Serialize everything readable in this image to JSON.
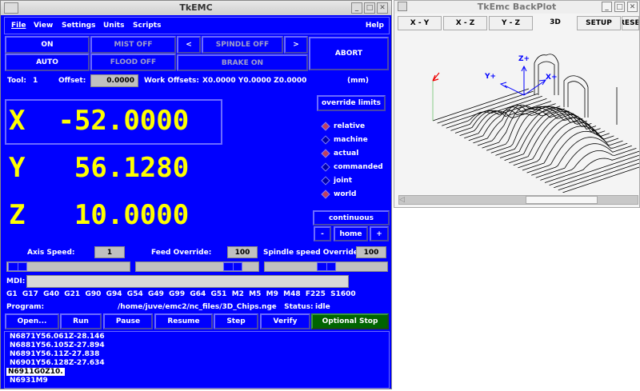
{
  "main": {
    "title": "TkEMC",
    "menu": [
      "File",
      "View",
      "Settings",
      "Units",
      "Scripts",
      "Help"
    ],
    "buttons": {
      "on": "ON",
      "mist": "MIST OFF",
      "spindle_dec": "<",
      "spindle": "SPINDLE OFF",
      "spindle_inc": ">",
      "abort": "ABORT",
      "auto": "AUTO",
      "flood": "FLOOD OFF",
      "brake": "BRAKE ON"
    },
    "tool": {
      "label": "Tool:",
      "value": "1",
      "offset_label": "Offset:",
      "offset_value": "0.0000",
      "work_label": "Work Offsets:",
      "work_value": "X0.0000 Y0.0000 Z0.0000",
      "units": "(mm)"
    },
    "dro": [
      {
        "axis": "X",
        "value": "-52.0000"
      },
      {
        "axis": "Y",
        "value": "56.1280"
      },
      {
        "axis": "Z",
        "value": "10.0000"
      }
    ],
    "override_limits": "override limits",
    "radios": [
      {
        "label": "relative",
        "on": true
      },
      {
        "label": "machine",
        "on": false
      },
      {
        "label": "actual",
        "on": true
      },
      {
        "label": "commanded",
        "on": false
      },
      {
        "label": "joint",
        "on": false
      },
      {
        "label": "world",
        "on": true
      }
    ],
    "jog": {
      "mode": "continuous",
      "minus": "-",
      "home": "home",
      "plus": "+"
    },
    "speeds": {
      "axis_label": "Axis Speed:",
      "axis_value": "1",
      "feed_label": "Feed Override:",
      "feed_value": "100",
      "spindle_label": "Spindle speed Override:",
      "spindle_value": "100"
    },
    "mdi": {
      "label": "MDI:",
      "value": ""
    },
    "gcodes": "G1  G17  G40  G21  G90  G94  G54  G49  G99  G64  G51  M2  M5  M9  M48  F225  S1600",
    "program": {
      "label": "Program:",
      "path": "/home/juve/emc2/nc_files/3D_Chips.ngc",
      "status_label": "-   Status:",
      "status": "idle"
    },
    "actions": [
      "Open...",
      "Run",
      "Pause",
      "Resume",
      "Step",
      "Verify",
      "Optional Stop"
    ],
    "code_lines": [
      "N6871Y56.061Z-28.146",
      "N6881Y56.105Z-27.894",
      "N6891Y56.11Z-27.838",
      "N6901Y56.128Z-27.634",
      "N6911G0Z10.",
      "N6931M9"
    ],
    "highlight_line": 4,
    "colors": {
      "bg": "#0000ff",
      "dro": "#ffff00",
      "optional_stop": "#006400"
    }
  },
  "backplot": {
    "title": "TkEmc BackPlot",
    "tabs": [
      "X - Y",
      "X - Z",
      "Y - Z",
      "3D",
      "SETUP",
      "RESET"
    ],
    "axes": {
      "z": "Z+",
      "y": "Y+",
      "x": "X+"
    }
  }
}
